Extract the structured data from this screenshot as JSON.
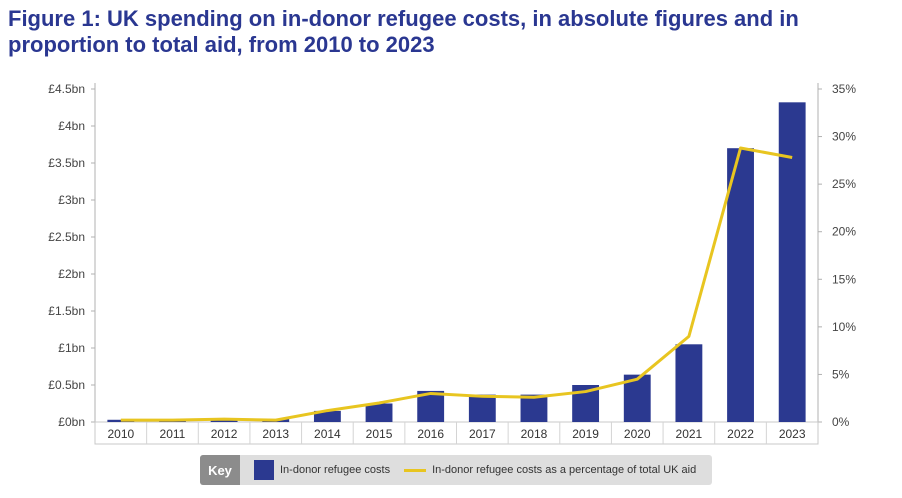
{
  "title": "Figure 1: UK spending on in-donor refugee costs, in absolute figures and in proportion to total aid, from 2010 to 2023",
  "chart_data": {
    "type": "bar",
    "categories": [
      "2010",
      "2011",
      "2012",
      "2013",
      "2014",
      "2015",
      "2016",
      "2017",
      "2018",
      "2019",
      "2020",
      "2021",
      "2022",
      "2023"
    ],
    "series": [
      {
        "name": "In-donor refugee costs",
        "type": "bar",
        "axis": "left",
        "unit": "£bn",
        "values": [
          0.03,
          0.02,
          0.04,
          0.04,
          0.15,
          0.25,
          0.42,
          0.37,
          0.37,
          0.5,
          0.64,
          1.05,
          3.7,
          4.32
        ]
      },
      {
        "name": "In-donor refugee costs as a percentage of total UK aid",
        "type": "line",
        "axis": "right",
        "unit": "%",
        "values": [
          0.2,
          0.2,
          0.3,
          0.2,
          1.2,
          2.0,
          3.0,
          2.7,
          2.6,
          3.2,
          4.5,
          9.0,
          28.8,
          27.8
        ]
      }
    ],
    "y_left": {
      "min": 0,
      "max": 4.5,
      "ticks": [
        0,
        0.5,
        1,
        1.5,
        2,
        2.5,
        3,
        3.5,
        4,
        4.5
      ],
      "tick_labels": [
        "£0bn",
        "£0.5bn",
        "£1bn",
        "£1.5bn",
        "£2bn",
        "£2.5bn",
        "£3bn",
        "£3.5bn",
        "£4bn",
        "£4.5bn"
      ]
    },
    "y_right": {
      "min": 0,
      "max": 35,
      "ticks": [
        0,
        5,
        10,
        15,
        20,
        25,
        30,
        35
      ],
      "tick_labels": [
        "0%",
        "5%",
        "10%",
        "15%",
        "20%",
        "25%",
        "30%",
        "35%"
      ]
    },
    "grid": false,
    "legend_position": "bottom",
    "legend_title": "Key",
    "colors": {
      "bar": "#2b3990",
      "line": "#e8c520",
      "title": "#2a3791"
    }
  }
}
